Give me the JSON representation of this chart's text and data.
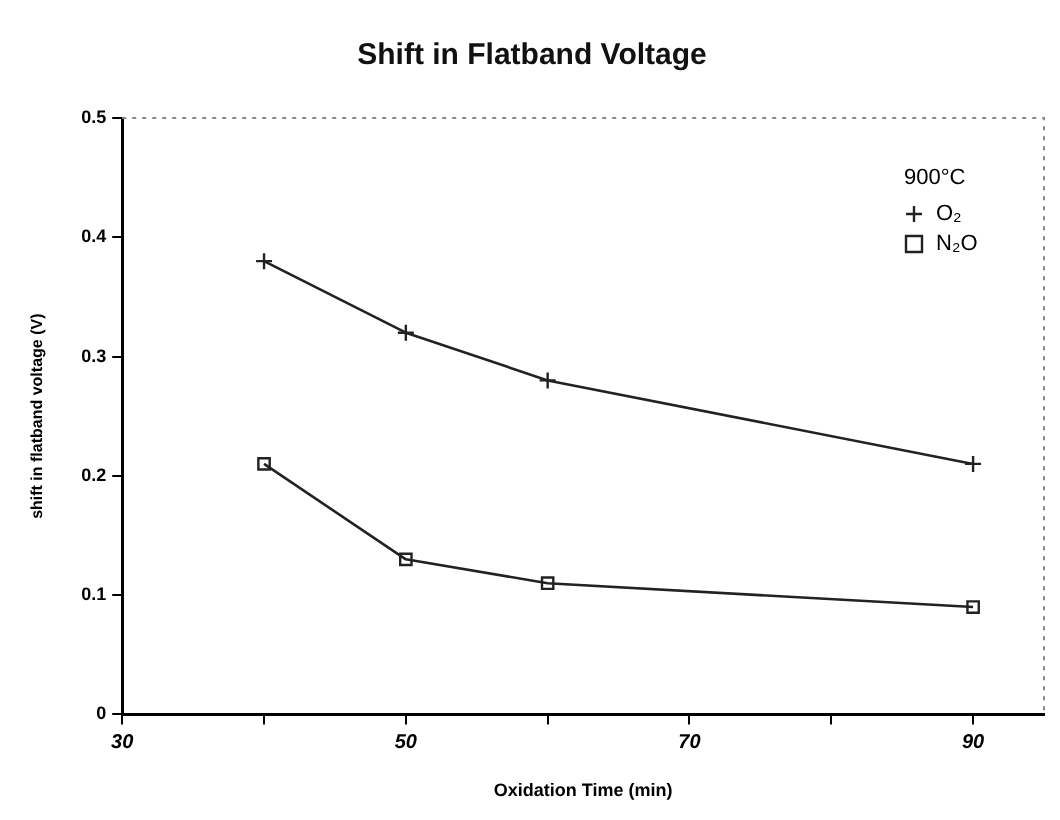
{
  "chart_data": {
    "type": "line",
    "title": "Shift in Flatband Voltage",
    "xlabel": "Oxidation Time (min)",
    "ylabel": "shift in flatband voltage (V)",
    "legend_title": "900°C",
    "x": [
      40,
      50,
      60,
      90
    ],
    "xlim": [
      30,
      95
    ],
    "xticks": [
      30,
      {
        "value": 40,
        "label": null
      },
      50,
      {
        "value": 60,
        "label": null
      },
      70,
      {
        "value": 80,
        "label": null
      },
      90
    ],
    "ylim": [
      0,
      0.5
    ],
    "yticks": [
      0,
      0.1,
      0.2,
      0.3,
      0.4,
      0.5
    ],
    "grid": false,
    "legend": "top right",
    "line_style": "solid",
    "series": [
      {
        "name": "O₂",
        "color": "#222222",
        "marker": "cross",
        "values": [
          0.38,
          0.32,
          0.28,
          0.21
        ]
      },
      {
        "name": "N₂O",
        "color": "#222222",
        "marker": "square",
        "values": [
          0.21,
          0.13,
          0.11,
          0.09
        ]
      }
    ]
  }
}
